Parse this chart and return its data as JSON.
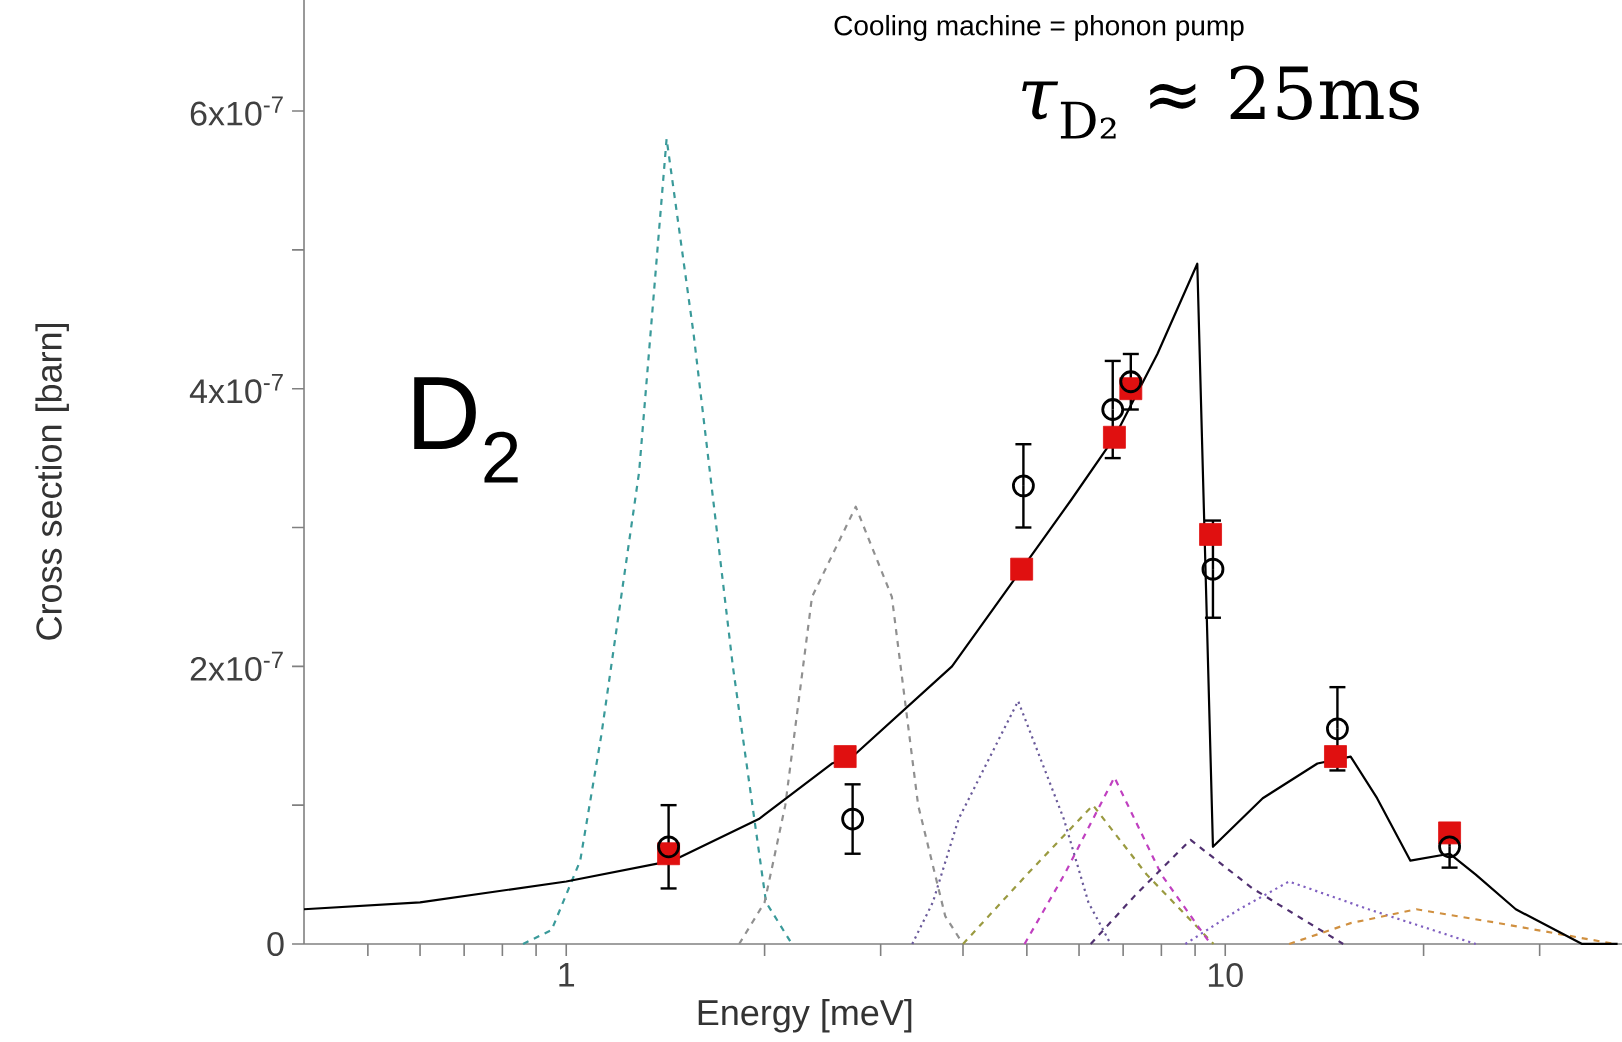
{
  "chart_data": {
    "type": "line",
    "xlabel": "Energy [meV]",
    "ylabel": "Cross section [barn]",
    "annotations": [
      "Cooling machine = phonon pump",
      "D$_{2}$",
      "*τ*$_{D₂}$ ≈ 25ms"
    ],
    "log": "x",
    "xlim": [
      0.4,
      40
    ],
    "ylim": [
      0,
      6.8e-07
    ],
    "xticks": [
      {
        "value": 0.5,
        "label": null
      },
      {
        "value": 0.6,
        "label": null
      },
      {
        "value": 0.7,
        "label": null
      },
      {
        "value": 0.8,
        "label": null
      },
      {
        "value": 0.9,
        "label": null
      },
      1,
      {
        "value": 2,
        "label": null
      },
      {
        "value": 3,
        "label": null
      },
      {
        "value": 4,
        "label": null
      },
      {
        "value": 5,
        "label": null
      },
      {
        "value": 6,
        "label": null
      },
      {
        "value": 7,
        "label": null
      },
      {
        "value": 8,
        "label": null
      },
      {
        "value": 9,
        "label": null
      },
      10,
      {
        "value": 20,
        "label": null
      },
      {
        "value": 30,
        "label": null
      }
    ],
    "yticks": [
      0,
      {
        "value": 1e-07,
        "label": null
      },
      {
        "value": 2e-07,
        "label": "2x10$^{-7}$"
      },
      {
        "value": 3e-07,
        "label": null
      },
      {
        "value": 4e-07,
        "label": "4x10$^{-7}$"
      },
      {
        "value": 5e-07,
        "label": null
      },
      {
        "value": 6e-07,
        "label": "6x10$^{-7}$"
      }
    ],
    "series": [
      {
        "color": "#3a9a9a",
        "line_style": "dashed",
        "marker": "none",
        "x": [
          0.86,
          0.95,
          1.05,
          1.13,
          1.29,
          1.42,
          1.56,
          1.79,
          2.01,
          2.2
        ],
        "values": [
          0,
          1e-08,
          6e-08,
          1.5e-07,
          3.4e-07,
          5.8e-07,
          4.4e-07,
          2e-07,
          3e-08,
          0
        ]
      },
      {
        "color": "#909090",
        "line_style": "dashed",
        "marker": "none",
        "x": [
          1.83,
          2.0,
          2.15,
          2.36,
          2.75,
          3.12,
          3.42,
          3.76,
          4.0
        ],
        "values": [
          0,
          3e-08,
          1e-07,
          2.5e-07,
          3.15e-07,
          2.5e-07,
          1e-07,
          2e-08,
          0
        ]
      },
      {
        "color": "#6a5a9a",
        "line_style": "dotted",
        "marker": "none",
        "x": [
          3.35,
          3.6,
          3.94,
          4.85,
          5.69,
          6.2,
          6.7
        ],
        "values": [
          0,
          3e-08,
          9e-08,
          1.75e-07,
          9e-08,
          3e-08,
          0
        ]
      },
      {
        "color": "#9a9a40",
        "line_style": "dashed",
        "marker": "none",
        "x": [
          4.0,
          5.0,
          6.3,
          7.6,
          9.6
        ],
        "values": [
          0,
          5e-08,
          1e-07,
          5e-08,
          0
        ]
      },
      {
        "color": "#c040c0",
        "line_style": "dashed",
        "marker": "none",
        "x": [
          4.96,
          5.7,
          6.79,
          8.0,
          9.5
        ],
        "values": [
          0,
          5e-08,
          1.2e-07,
          5e-08,
          0
        ]
      },
      {
        "color": "#503070",
        "line_style": "dashed",
        "marker": "none",
        "x": [
          6.25,
          7.3,
          8.86,
          11.0,
          15.1
        ],
        "values": [
          0,
          3.5e-08,
          7.5e-08,
          4e-08,
          0
        ]
      },
      {
        "color": "#8060c0",
        "line_style": "dotted",
        "marker": "none",
        "x": [
          8.7,
          10.5,
          12.5,
          16.5,
          24
        ],
        "values": [
          0,
          2.5e-08,
          4.5e-08,
          2.5e-08,
          0
        ]
      },
      {
        "color": "#d09040",
        "line_style": "dashed",
        "marker": "none",
        "x": [
          12.5,
          15.5,
          19.5,
          26,
          39
        ],
        "values": [
          0,
          1.5e-08,
          2.5e-08,
          1.5e-08,
          0
        ]
      },
      {
        "color": "#000000",
        "line_style": "solid",
        "marker": "none",
        "x": [
          0.4,
          0.6,
          1.0,
          1.45,
          1.96,
          2.53,
          2.72,
          3.85,
          4.91,
          5.84,
          6.79,
          7.89,
          9.07,
          9.58,
          11.4,
          13.8,
          15.5,
          17.0,
          19.1,
          21.9,
          24.0,
          27.6,
          31.7,
          34.8,
          39.4
        ],
        "values": [
          2.5e-08,
          3e-08,
          4.5e-08,
          6e-08,
          9e-08,
          1.3e-07,
          1.35e-07,
          2e-07,
          2.7e-07,
          3.2e-07,
          3.65e-07,
          4.25e-07,
          4.9e-07,
          7e-08,
          1.05e-07,
          1.3e-07,
          1.35e-07,
          1.05e-07,
          6e-08,
          6.5e-08,
          5e-08,
          2.5e-08,
          1e-08,
          0,
          0
        ]
      },
      {
        "type": "scatter",
        "color": "#e01010",
        "marker": "square",
        "x": [
          1.43,
          2.65,
          4.91,
          6.79,
          7.19,
          9.5,
          14.7,
          21.9
        ],
        "values": [
          6.5e-08,
          1.35e-07,
          2.7e-07,
          3.65e-07,
          4e-07,
          2.95e-07,
          1.35e-07,
          8e-08
        ]
      },
      {
        "type": "scatter",
        "color": "#000000",
        "marker": "circle",
        "x": [
          1.43,
          2.72,
          4.94,
          6.75,
          7.19,
          9.58,
          14.8,
          21.9
        ],
        "values": [
          7e-08,
          9e-08,
          3.3e-07,
          3.85e-07,
          4.05e-07,
          2.7e-07,
          1.55e-07,
          7e-08
        ],
        "errors": [
          3e-08,
          2.5e-08,
          3e-08,
          3.5e-08,
          2e-08,
          3.5e-08,
          3e-08,
          1.5e-08
        ]
      }
    ]
  }
}
